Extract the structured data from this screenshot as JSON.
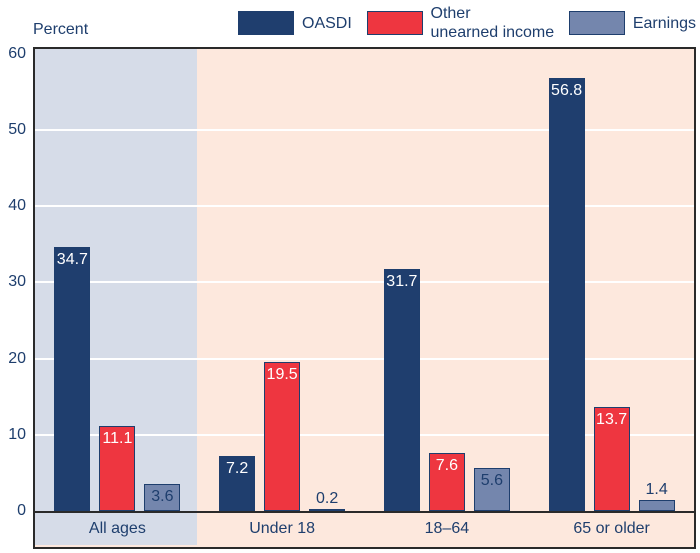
{
  "chart_data": {
    "type": "bar",
    "title": "",
    "ylabel": "Percent",
    "xlabel": "",
    "categories": [
      "All ages",
      "Under 18",
      "18–64",
      "65 or older"
    ],
    "series": [
      {
        "name": "OASDI",
        "values": [
          34.7,
          7.2,
          31.7,
          56.8
        ],
        "color": "#1f3e6e",
        "value_label_color": "#ffffff"
      },
      {
        "name": "Other unearned income",
        "values": [
          11.1,
          19.5,
          7.6,
          13.7
        ],
        "color": "#ee3640",
        "value_label_color": "#ffffff"
      },
      {
        "name": "Earnings",
        "values": [
          3.6,
          0.2,
          5.6,
          1.4
        ],
        "color": "#7486ad",
        "value_label_color": "#1e3e6d"
      }
    ],
    "legend": {
      "position": "top",
      "items": [
        {
          "series": "OASDI",
          "lines": [
            "OASDI"
          ]
        },
        {
          "series": "Other unearned income",
          "lines": [
            "Other",
            "unearned income"
          ]
        },
        {
          "series": "Earnings",
          "lines": [
            "Earnings"
          ]
        }
      ]
    },
    "ylim": [
      0,
      60
    ],
    "yticks": [
      0,
      10,
      20,
      30,
      40,
      50,
      60
    ],
    "grid": {
      "horizontal": true,
      "color": "#ffffff",
      "ticks": [
        10,
        20,
        30,
        40,
        50
      ]
    },
    "highlight_band": {
      "category": "All ages",
      "color": "#d6dce8"
    },
    "plot_background": "#fde8dd",
    "bar_border_color": "#1e3e6d",
    "frame_color": "#2a2a2a",
    "text_color": "#1e3e6d"
  }
}
